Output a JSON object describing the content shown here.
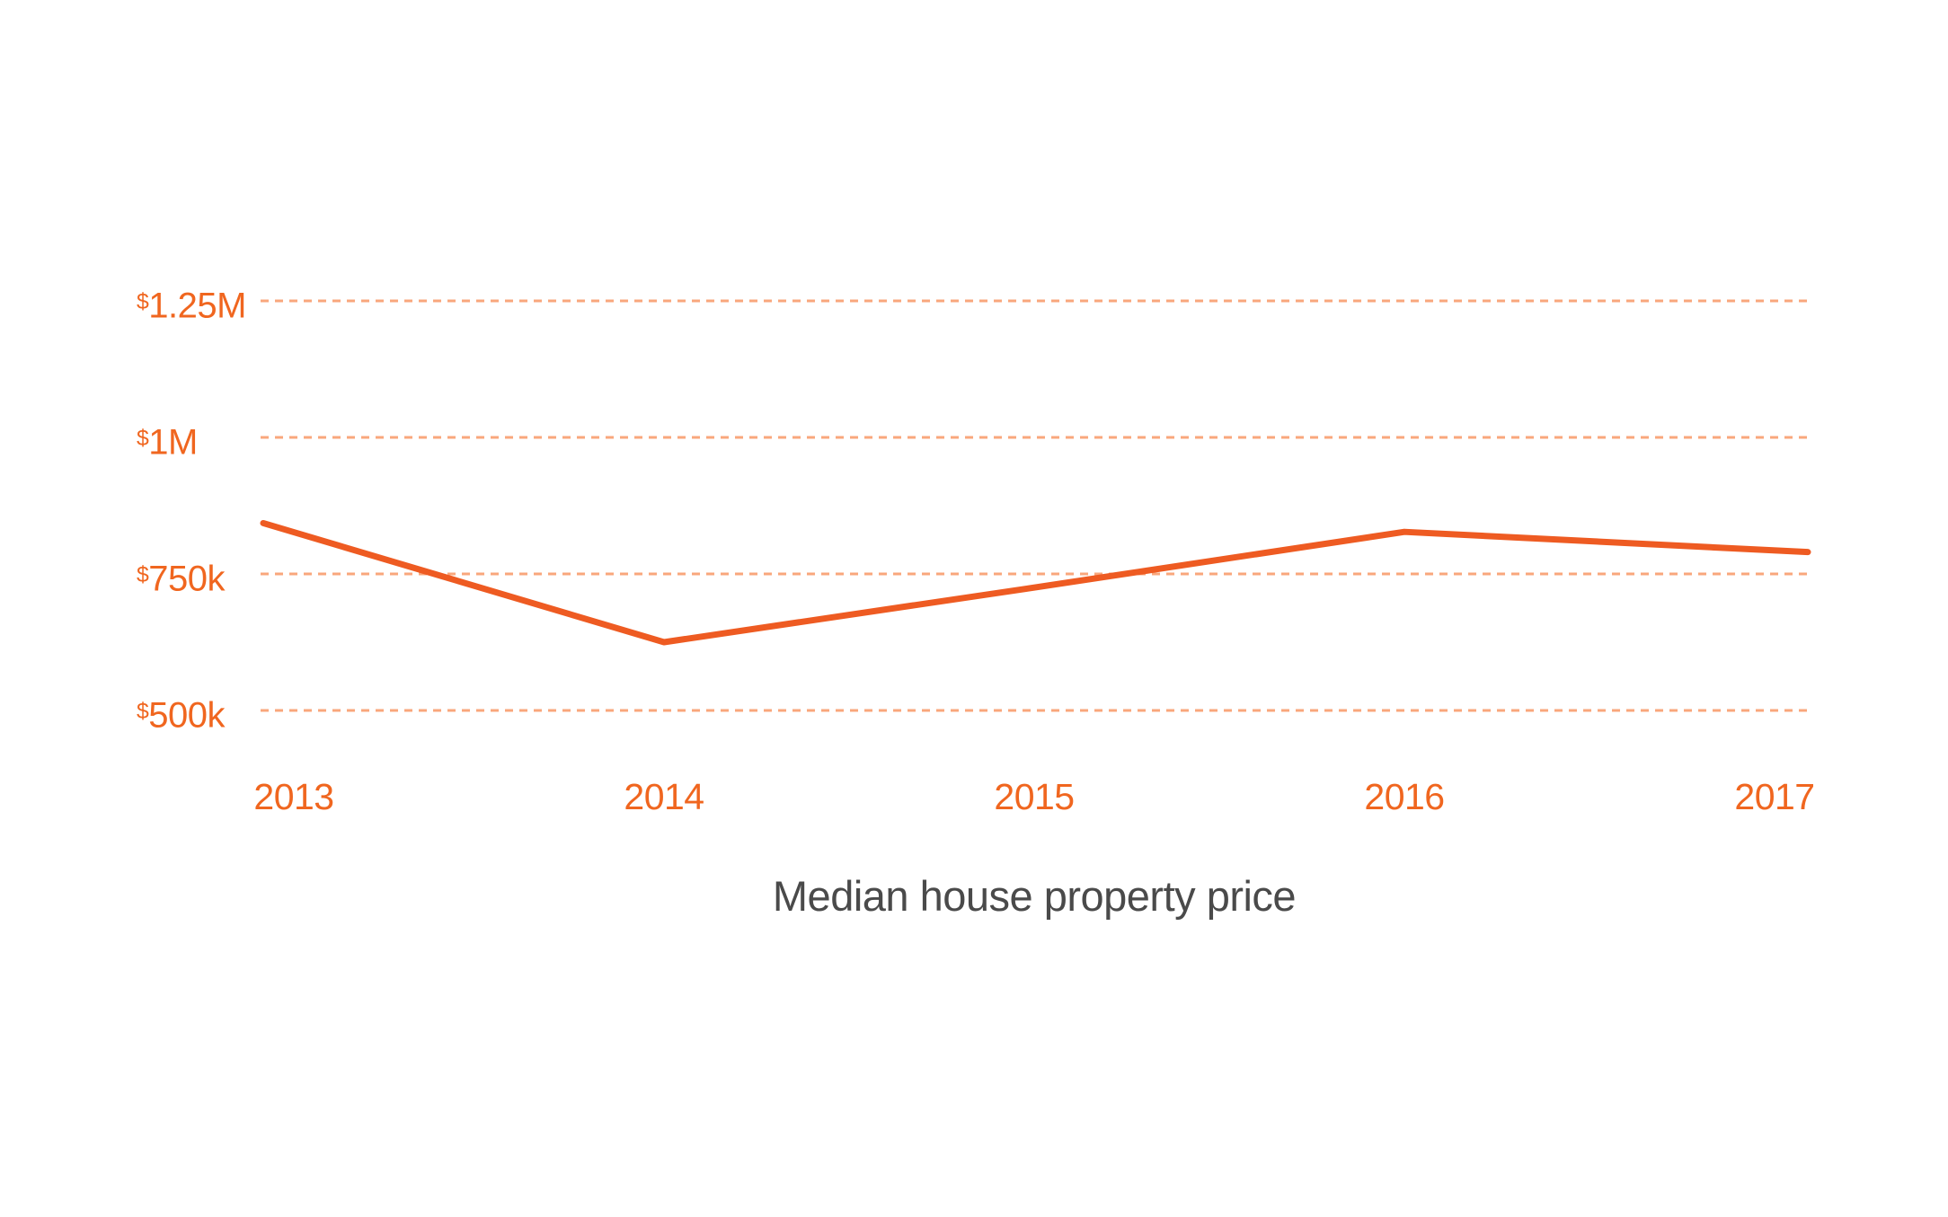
{
  "chart_data": {
    "type": "line",
    "title": "Median house property price",
    "x": [
      "2013",
      "2014",
      "2015",
      "2016",
      "2017"
    ],
    "series": [
      {
        "name": "Median house property price",
        "values": [
          843000,
          625000,
          725000,
          827000,
          790000
        ]
      }
    ],
    "y_ticks": [
      {
        "label": "$1.25M",
        "value": 1250000
      },
      {
        "label": "$1M",
        "value": 1000000
      },
      {
        "label": "$750k",
        "value": 750000
      },
      {
        "label": "$500k",
        "value": 500000
      }
    ],
    "ylim": [
      450000,
      1300000
    ],
    "xlabel": "",
    "ylabel": "",
    "grid": "horizontal-dashed",
    "legend": "none",
    "colors": {
      "line": "#ee5b22",
      "grid": "#f9a77c",
      "tick_labels": "#f0661f",
      "title": "#4a4a4a",
      "background": "#ffffff"
    }
  }
}
